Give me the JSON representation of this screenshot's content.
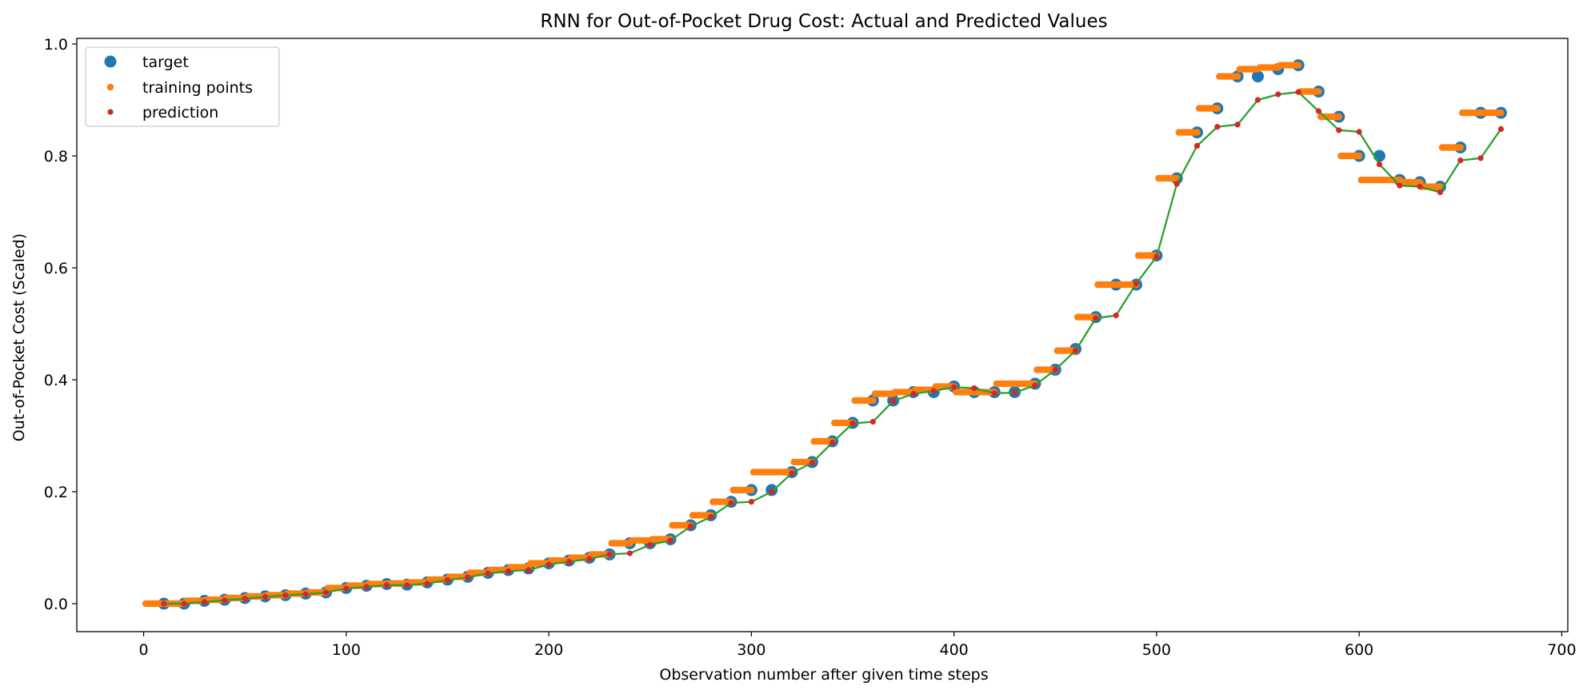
{
  "chart_data": {
    "type": "line",
    "title": "RNN for Out-of-Pocket Drug Cost: Actual and Predicted Values",
    "xlabel": "Observation number after given time steps",
    "ylabel": "Out-of-Pocket Cost (Scaled)",
    "xlim": [
      -33,
      703
    ],
    "ylim": [
      -0.05,
      1.01
    ],
    "xticks": [
      0,
      100,
      200,
      300,
      400,
      500,
      600,
      700
    ],
    "yticks": [
      0.0,
      0.2,
      0.4,
      0.6,
      0.8,
      1.0
    ],
    "grid": false,
    "legend_position": "upper left",
    "colors": {
      "target": "#1f77b4",
      "training": "#ff7f0e",
      "prediction": "#d62728",
      "line": "#2ca02c"
    },
    "legend": [
      "target",
      "training points",
      "prediction"
    ],
    "window_size": 10,
    "x": [
      10,
      20,
      30,
      40,
      50,
      60,
      70,
      80,
      90,
      100,
      110,
      120,
      130,
      140,
      150,
      160,
      170,
      180,
      190,
      200,
      210,
      220,
      230,
      240,
      250,
      260,
      270,
      280,
      290,
      300,
      310,
      320,
      330,
      340,
      350,
      360,
      370,
      380,
      390,
      400,
      410,
      420,
      430,
      440,
      450,
      460,
      470,
      480,
      490,
      500,
      510,
      520,
      530,
      540,
      550,
      560,
      570,
      580,
      590,
      600,
      610,
      620,
      630,
      640,
      650,
      660,
      670
    ],
    "target": [
      0.0,
      0.0,
      0.005,
      0.007,
      0.01,
      0.013,
      0.015,
      0.018,
      0.02,
      0.028,
      0.032,
      0.035,
      0.034,
      0.038,
      0.043,
      0.048,
      0.055,
      0.06,
      0.063,
      0.072,
      0.077,
      0.082,
      0.088,
      0.108,
      0.108,
      0.115,
      0.14,
      0.158,
      0.182,
      0.203,
      0.203,
      0.235,
      0.253,
      0.29,
      0.323,
      0.363,
      0.363,
      0.378,
      0.378,
      0.388,
      0.378,
      0.378,
      0.378,
      0.393,
      0.418,
      0.455,
      0.512,
      0.57,
      0.57,
      0.622,
      0.76,
      0.842,
      0.885,
      0.942,
      0.942,
      0.955,
      0.962,
      0.915,
      0.87,
      0.8,
      0.8,
      0.757,
      0.753,
      0.745,
      0.815,
      0.877,
      0.877
    ],
    "training": [
      0.0,
      0.0,
      0.005,
      0.007,
      0.01,
      0.013,
      0.015,
      0.018,
      0.02,
      0.028,
      0.032,
      0.035,
      0.036,
      0.038,
      0.043,
      0.048,
      0.055,
      0.06,
      0.065,
      0.072,
      0.077,
      0.082,
      0.088,
      0.108,
      0.113,
      0.115,
      0.14,
      0.158,
      0.182,
      0.203,
      0.235,
      0.235,
      0.253,
      0.29,
      0.323,
      0.363,
      0.375,
      0.378,
      0.382,
      0.388,
      0.378,
      0.378,
      0.393,
      0.393,
      0.418,
      0.452,
      0.512,
      0.57,
      0.57,
      0.622,
      0.76,
      0.842,
      0.885,
      0.942,
      0.955,
      0.958,
      0.962,
      0.915,
      0.87,
      0.8,
      0.757,
      0.757,
      0.753,
      0.745,
      0.815,
      0.877,
      0.877
    ],
    "prediction": [
      0.0,
      0.0,
      0.003,
      0.006,
      0.009,
      0.012,
      0.015,
      0.017,
      0.02,
      0.027,
      0.03,
      0.033,
      0.033,
      0.036,
      0.042,
      0.047,
      0.054,
      0.058,
      0.06,
      0.07,
      0.075,
      0.08,
      0.088,
      0.09,
      0.105,
      0.113,
      0.138,
      0.155,
      0.18,
      0.182,
      0.2,
      0.233,
      0.252,
      0.288,
      0.322,
      0.325,
      0.362,
      0.375,
      0.38,
      0.387,
      0.385,
      0.376,
      0.377,
      0.39,
      0.418,
      0.452,
      0.51,
      0.515,
      0.572,
      0.62,
      0.75,
      0.818,
      0.852,
      0.856,
      0.9,
      0.91,
      0.914,
      0.88,
      0.846,
      0.843,
      0.785,
      0.747,
      0.745,
      0.735,
      0.792,
      0.796,
      0.848
    ]
  }
}
